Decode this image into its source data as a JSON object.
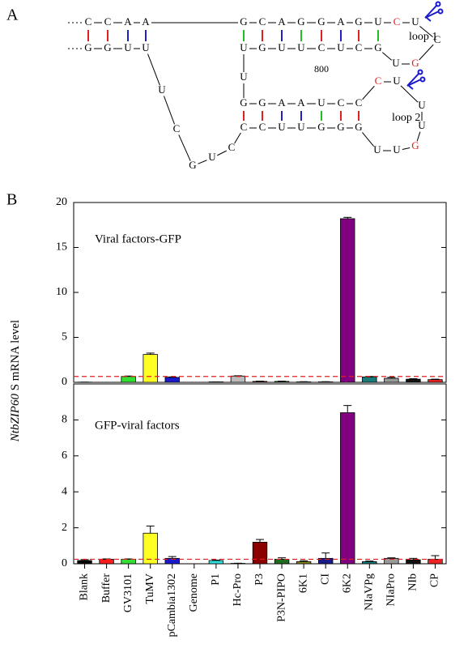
{
  "panel_a": {
    "label": "A",
    "bases": [
      "C",
      "C",
      "A",
      "A",
      "G",
      "G",
      "U",
      "U",
      "G",
      "C",
      "A",
      "G",
      "G",
      "A",
      "G",
      "U",
      "C",
      "U",
      "C",
      "G",
      "U",
      "U",
      "G",
      "U",
      "U",
      "C",
      "U",
      "C",
      "G",
      "U",
      "G",
      "G",
      "A",
      "A",
      "U",
      "C",
      "C",
      "C",
      "U",
      "U",
      "U",
      "G",
      "U",
      "U",
      "C",
      "C",
      "U",
      "U",
      "G",
      "G",
      "G",
      "U",
      "C",
      "G",
      "U",
      "C"
    ],
    "loop_labels": [
      "loop 1",
      "loop 2"
    ],
    "position_label": "800"
  },
  "panel_b_label": "B",
  "chart_data": {
    "type": "bar",
    "y_label": [
      "NtbZIP60",
      " S mRNA level"
    ],
    "categories": [
      "Blank",
      "Buffer",
      "GV3101",
      "TuMV",
      "pCambia1302",
      "Genome",
      "P1",
      "Hc-Pro",
      "P3",
      "P3N-PIPO",
      "6K1",
      "CI",
      "6K2",
      "NIaVPg",
      "NIaPro",
      "NIb",
      "CP"
    ],
    "colors": [
      "#000000",
      "#ff1a1a",
      "#33dd33",
      "#ffff22",
      "#1a1acc",
      "#999999",
      "#33dddd",
      "#bbbbbb",
      "#8b0000",
      "#1f6b1f",
      "#888822",
      "#1a1a88",
      "#800080",
      "#1a7a7a",
      "#999999",
      "#111111",
      "#ee2222"
    ],
    "panels": [
      {
        "annotation": "Viral factors-GFP",
        "ylim": [
          0,
          20
        ],
        "yticks": [
          0,
          5,
          10,
          15,
          20
        ],
        "reference_line": 0.65,
        "values": [
          0.02,
          0,
          0.65,
          3.1,
          0.55,
          0,
          0.05,
          0.7,
          0.1,
          0.1,
          0.05,
          0.05,
          18.2,
          0.6,
          0.45,
          0.35,
          0.3
        ],
        "errors": [
          0,
          0,
          0.05,
          0.15,
          0.05,
          0,
          0,
          0.03,
          0.03,
          0.03,
          0.02,
          0.02,
          0.15,
          0.05,
          0.1,
          0.05,
          0.05
        ]
      },
      {
        "annotation": "GFP-viral factors",
        "ylim": [
          0,
          10
        ],
        "yticks": [
          0,
          2,
          4,
          6,
          8
        ],
        "reference_line": 0.25,
        "values": [
          0.18,
          0.25,
          0.25,
          1.7,
          0.3,
          0,
          0.18,
          0.02,
          1.2,
          0.25,
          0.12,
          0.3,
          8.4,
          0.12,
          0.3,
          0.22,
          0.25
        ],
        "errors": [
          0.05,
          0.02,
          0.02,
          0.4,
          0.1,
          0,
          0.02,
          0.01,
          0.15,
          0.08,
          0.05,
          0.3,
          0.4,
          0.03,
          0.03,
          0.08,
          0.2
        ]
      }
    ]
  }
}
